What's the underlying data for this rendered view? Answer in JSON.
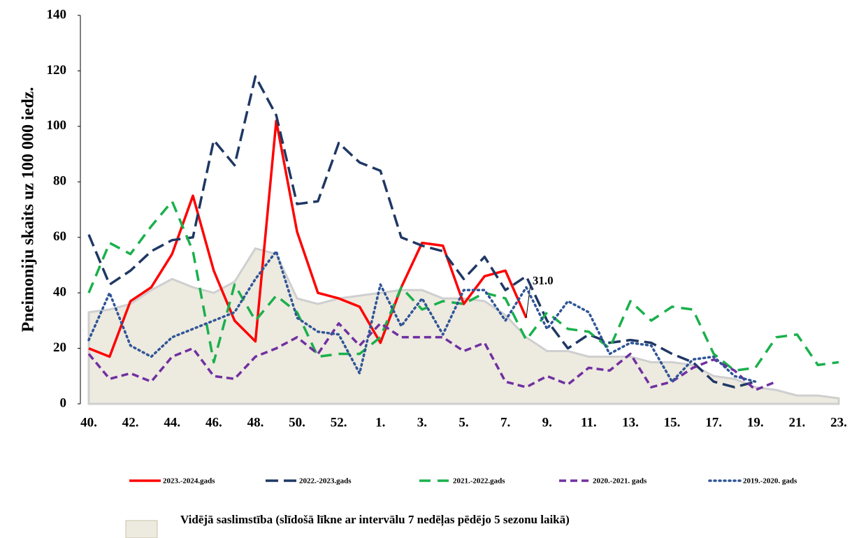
{
  "chart_data": {
    "type": "line",
    "ylabel": "Pneimoniju skaits uz 100 000 iedz.",
    "categories": [
      "40.",
      null,
      "42.",
      null,
      "44.",
      null,
      "46.",
      null,
      "48.",
      null,
      "50.",
      null,
      "52.",
      null,
      "1.",
      null,
      "3.",
      null,
      "5.",
      null,
      "7.",
      null,
      "9.",
      null,
      "11.",
      null,
      "13.",
      null,
      "15.",
      null,
      "17.",
      null,
      "19.",
      null,
      "21.",
      null,
      "23."
    ],
    "ylim": [
      0,
      140
    ],
    "yticks": [
      0,
      20,
      40,
      60,
      80,
      100,
      120,
      140
    ],
    "area": {
      "name": "Vidējā saslimstība (slīdošā līkne ar intervālu 7 nedēļas pēdējo 5 sezonu laikā)",
      "color": "#edeae0",
      "values": [
        33,
        34,
        36,
        41,
        45,
        42,
        40,
        44,
        56,
        54,
        38,
        36,
        38,
        39,
        40,
        41,
        41,
        38,
        38,
        37,
        32,
        24,
        19,
        19,
        17,
        17,
        17,
        15,
        15,
        14,
        10,
        9,
        6,
        5,
        3,
        3,
        2
      ]
    },
    "series": [
      {
        "name": "2023.-2024.gads",
        "color": "#ff0000",
        "dash": "none",
        "values": [
          20,
          17,
          37,
          42,
          54,
          75,
          48,
          30,
          22.5,
          102,
          62,
          40,
          38,
          35,
          22,
          42,
          58,
          57,
          36,
          46,
          48,
          31,
          null,
          null,
          null,
          null,
          null,
          null,
          null,
          null,
          null,
          null,
          null,
          null,
          null,
          null,
          null
        ],
        "value_labels": [
          null,
          null,
          null,
          null,
          null,
          null,
          null,
          null,
          null,
          null,
          null,
          null,
          null,
          null,
          null,
          null,
          null,
          null,
          null,
          null,
          null,
          "31.0",
          null,
          null,
          null,
          null,
          null,
          null,
          null,
          null,
          null,
          null,
          null,
          null,
          null,
          null,
          null
        ]
      },
      {
        "name": "2022.-2023.gads",
        "color": "#1f3864",
        "dash": "18,8",
        "values": [
          61,
          43,
          48,
          55,
          59,
          60,
          95,
          86,
          118,
          104,
          72,
          73,
          94,
          87,
          84,
          60,
          57,
          55,
          45,
          53,
          41,
          46,
          30,
          20,
          25,
          22,
          23,
          22,
          18,
          15,
          8,
          6,
          8,
          null,
          null,
          null,
          null
        ]
      },
      {
        "name": "2021.-2022.gads",
        "color": "#1ab04c",
        "dash": "16,10",
        "values": [
          40,
          58,
          54,
          64,
          73,
          55,
          15,
          43,
          30,
          39,
          33,
          17,
          18,
          18,
          24,
          42,
          34,
          37,
          36,
          40,
          38,
          23,
          33,
          27,
          26,
          20,
          37,
          30,
          35,
          34,
          18,
          12,
          13,
          24,
          25,
          14,
          15
        ]
      },
      {
        "name": "2020.-2021. gads",
        "color": "#7030a0",
        "dash": "10,6",
        "values": [
          18,
          9,
          11,
          8,
          17,
          20,
          10,
          9,
          17,
          20,
          24,
          18,
          29,
          21,
          29,
          24,
          24,
          24,
          19,
          22,
          8,
          6,
          10,
          7,
          13,
          12,
          18,
          6,
          8,
          13,
          16,
          12,
          5,
          8,
          null,
          null,
          null
        ]
      },
      {
        "name": "2019.-2020. gads",
        "color": "#2f5597",
        "dash": "2,5",
        "values": [
          23,
          40,
          21,
          17,
          24,
          27,
          30,
          33,
          45,
          55,
          31,
          26,
          25,
          11,
          43,
          28,
          38,
          25,
          41,
          41,
          30,
          42,
          27,
          37,
          33,
          18,
          22,
          21,
          8,
          16,
          17,
          10,
          8,
          null,
          null,
          null,
          null
        ]
      }
    ]
  }
}
